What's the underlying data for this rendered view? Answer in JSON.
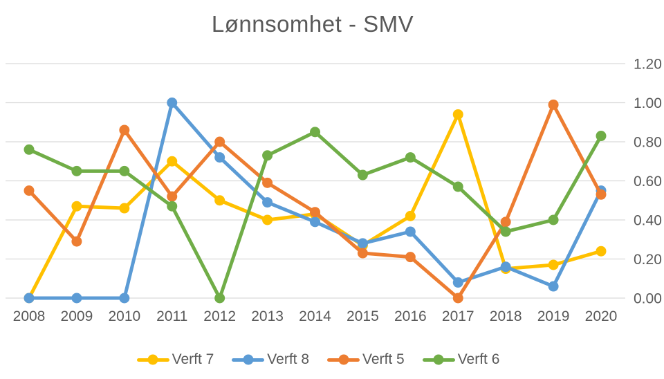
{
  "chart_data": {
    "type": "line",
    "title": "Lønnsomhet - SMV",
    "xlabel": "",
    "ylabel": "",
    "x": [
      "2008",
      "2009",
      "2010",
      "2011",
      "2012",
      "2013",
      "2014",
      "2015",
      "2016",
      "2017",
      "2018",
      "2019",
      "2020"
    ],
    "series": [
      {
        "name": "Verft 7",
        "color": "#FFC000",
        "values": [
          0.0,
          0.47,
          0.46,
          0.7,
          0.5,
          0.4,
          0.43,
          0.27,
          0.42,
          0.94,
          0.15,
          0.17,
          0.24
        ]
      },
      {
        "name": "Verft 8",
        "color": "#5B9BD5",
        "values": [
          0.0,
          0.0,
          0.0,
          1.0,
          0.72,
          0.49,
          0.39,
          0.28,
          0.34,
          0.08,
          0.16,
          0.06,
          0.55
        ]
      },
      {
        "name": "Verft 5",
        "color": "#ED7D31",
        "values": [
          0.55,
          0.29,
          0.86,
          0.52,
          0.8,
          0.59,
          0.44,
          0.23,
          0.21,
          0.0,
          0.39,
          0.99,
          0.53
        ]
      },
      {
        "name": "Verft 6",
        "color": "#70AD47",
        "values": [
          0.76,
          0.65,
          0.65,
          0.47,
          0.0,
          0.73,
          0.85,
          0.63,
          0.72,
          0.57,
          0.34,
          0.4,
          0.83
        ]
      }
    ],
    "yticks": [
      0.0,
      0.2,
      0.4,
      0.6,
      0.8,
      1.0,
      1.2
    ],
    "ytick_labels": [
      "0.00",
      "0.20",
      "0.40",
      "0.60",
      "0.80",
      "1.00",
      "1.20"
    ],
    "ylim": [
      0,
      1.2
    ],
    "yaxis_side": "right",
    "legend_position": "bottom",
    "grid": "horizontal"
  },
  "colors": {
    "text": "#595959",
    "gridline": "#D9D9D9",
    "background": "#FFFFFF"
  }
}
